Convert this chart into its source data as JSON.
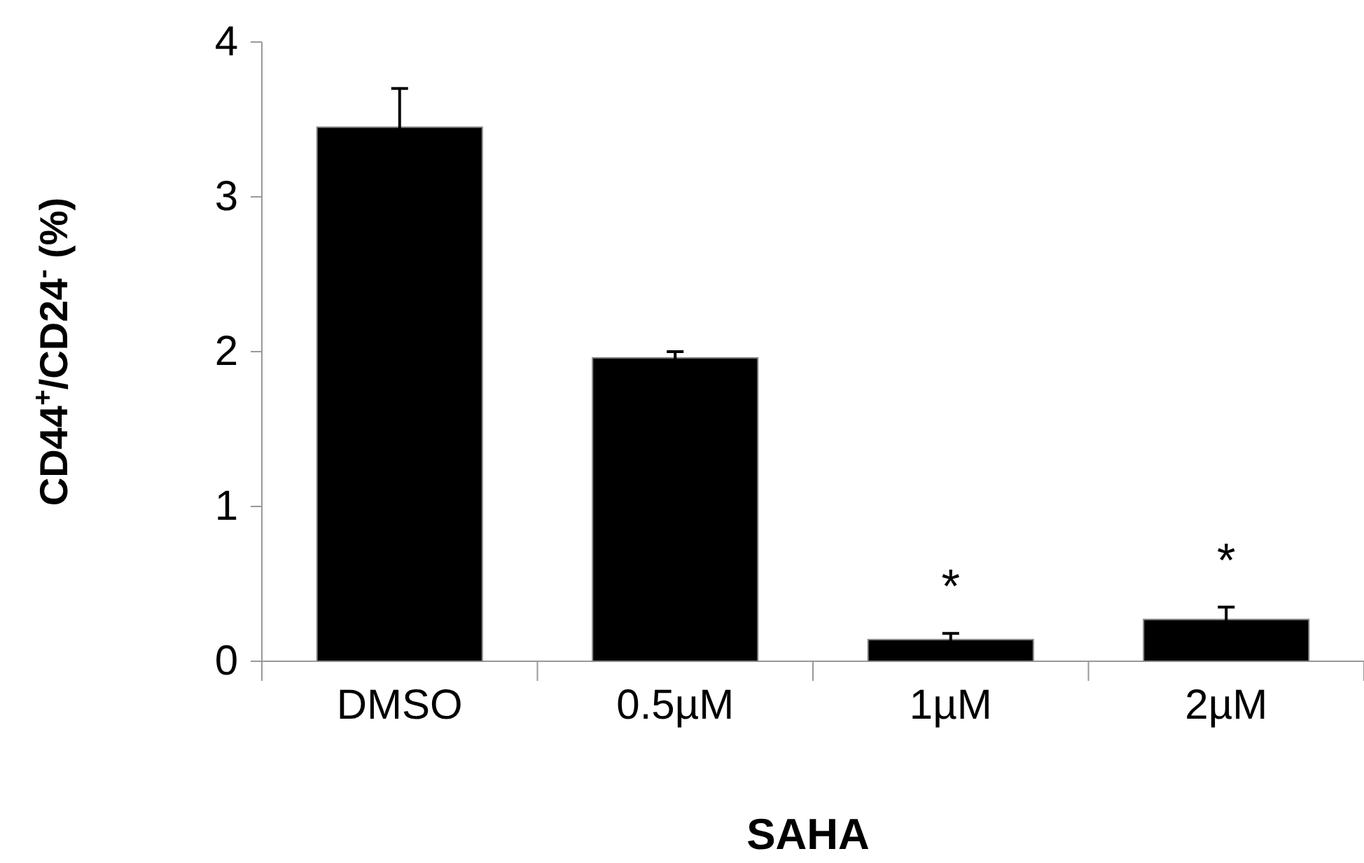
{
  "chart_data": {
    "type": "bar",
    "xlabel": "SAHA",
    "ylabel": "CD44$^{+}$/CD24$^{-}$ (%)",
    "categories": [
      "DMSO",
      "0.5µM",
      "1µM",
      "2µM"
    ],
    "values": [
      3.45,
      1.96,
      0.14,
      0.27
    ],
    "errors": [
      0.25,
      0.04,
      0.04,
      0.08
    ],
    "color": "#000000",
    "ylim": [
      0,
      4
    ],
    "yticks": [
      0,
      1,
      2,
      3,
      4
    ],
    "grid": false,
    "annotations": [
      "*",
      "*"
    ]
  }
}
